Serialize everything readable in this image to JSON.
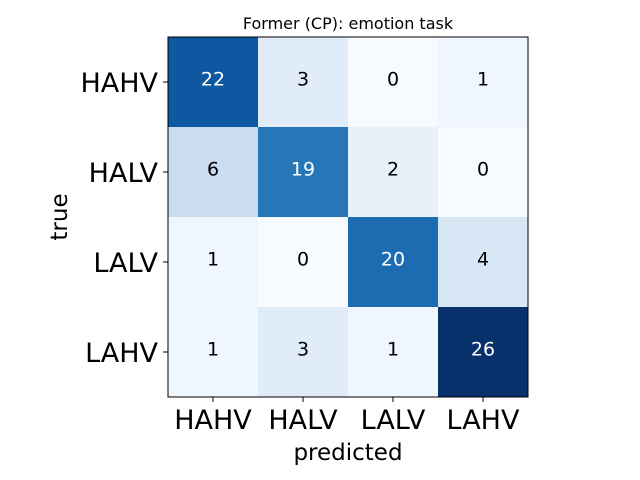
{
  "chart_data": {
    "type": "heatmap",
    "title": "Former (CP): emotion task",
    "xlabel": "predicted",
    "ylabel": "true",
    "x_categories": [
      "HAHV",
      "HALV",
      "LALV",
      "LAHV"
    ],
    "y_categories": [
      "HAHV",
      "HALV",
      "LALV",
      "LAHV"
    ],
    "values": [
      [
        22,
        3,
        0,
        1
      ],
      [
        6,
        19,
        2,
        0
      ],
      [
        1,
        0,
        20,
        4
      ],
      [
        1,
        3,
        1,
        26
      ]
    ],
    "colormap": "Blues",
    "vmin": 0,
    "vmax": 26,
    "colors": {
      "low": "#f7fbff",
      "high": "#08306b",
      "text_dark": "#000000",
      "text_light": "#ffffff"
    }
  }
}
